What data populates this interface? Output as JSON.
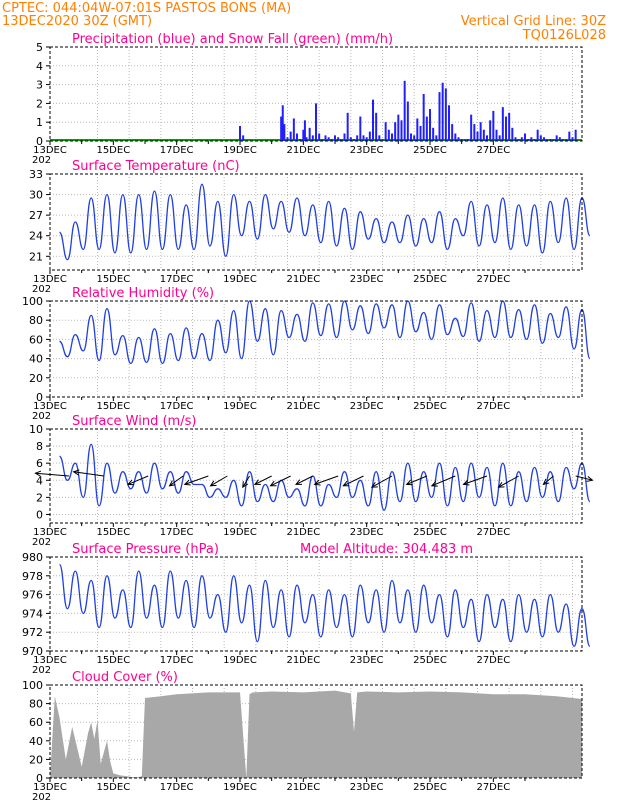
{
  "header": {
    "line1": "CPTEC:   044:04W-07:01S   PASTOS BONS (MA)",
    "line2": "13DEC2020 30Z (GMT)",
    "grid_note": "Vertical Grid Line: 30Z",
    "code": "TQ0126L028"
  },
  "year_stub": "202",
  "colors": {
    "header": "#ff8000",
    "title": "#ff0090",
    "line": "#2040e0",
    "precip": "#2020ff",
    "snow": "#00a000",
    "cloud": "#a8a8a8",
    "grid": "#bbbbbb"
  },
  "chart_data": [
    {
      "id": "precip",
      "type": "bar",
      "title": "Precipitation (blue) and Snow Fall (green) (mm/h)",
      "ylim": [
        0,
        5
      ],
      "yticks": [
        0,
        1,
        2,
        3,
        4,
        5
      ],
      "x_ticks": [
        "13DEC",
        "15DEC",
        "17DEC",
        "19DEC",
        "21DEC",
        "23DEC",
        "25DEC",
        "27DEC"
      ],
      "x": [
        6.0,
        6.1,
        7.3,
        7.35,
        7.4,
        7.5,
        7.6,
        7.7,
        7.8,
        7.9,
        8.0,
        8.05,
        8.1,
        8.2,
        8.3,
        8.4,
        8.5,
        8.6,
        8.7,
        8.8,
        8.9,
        9.0,
        9.1,
        9.2,
        9.3,
        9.4,
        9.5,
        9.6,
        9.7,
        9.8,
        9.9,
        10.0,
        10.1,
        10.2,
        10.3,
        10.4,
        10.5,
        10.6,
        10.7,
        10.8,
        10.9,
        11.0,
        11.1,
        11.2,
        11.3,
        11.4,
        11.5,
        11.6,
        11.7,
        11.8,
        11.9,
        12.0,
        12.1,
        12.2,
        12.3,
        12.4,
        12.5,
        12.6,
        12.7,
        12.8,
        12.9,
        13.0,
        13.1,
        13.2,
        13.3,
        13.4,
        13.5,
        13.6,
        13.7,
        13.8,
        13.9,
        14.0,
        14.1,
        14.2,
        14.3,
        14.4,
        14.5,
        14.6,
        14.7,
        14.8,
        14.9,
        15.0,
        15.1,
        15.2,
        15.3,
        15.4,
        15.5,
        15.6,
        15.7,
        15.8,
        15.9,
        16.0,
        16.1,
        16.2,
        16.3,
        16.4,
        16.5,
        16.6
      ],
      "values": [
        0.8,
        0.3,
        1.3,
        1.9,
        0.9,
        0.2,
        0.5,
        1.2,
        0.4,
        0.1,
        0.6,
        1.1,
        0.2,
        0.7,
        0.3,
        2.0,
        0.4,
        0.1,
        0.3,
        0.2,
        0.1,
        0.3,
        0.2,
        0.1,
        0.4,
        1.5,
        0.2,
        0.1,
        0.3,
        1.3,
        0.3,
        0.2,
        0.5,
        2.2,
        1.5,
        0.3,
        0.1,
        1.0,
        0.6,
        0.4,
        1.0,
        1.4,
        1.1,
        3.2,
        2.1,
        0.4,
        0.3,
        1.2,
        0.8,
        2.5,
        1.3,
        1.7,
        0.7,
        0.3,
        2.6,
        3.1,
        2.8,
        1.9,
        0.9,
        0.4,
        0.2,
        0.1,
        0.1,
        0.1,
        1.4,
        0.9,
        0.5,
        1.0,
        0.6,
        0.3,
        1.1,
        1.6,
        0.6,
        0.3,
        1.8,
        1.3,
        1.5,
        0.7,
        0.2,
        0.1,
        0.2,
        0.4,
        0.1,
        0.2,
        0.1,
        0.6,
        0.3,
        0.2,
        0.1,
        0.1,
        0.1,
        0.3,
        0.2,
        0.1,
        0.1,
        0.5,
        0.2,
        0.6
      ]
    },
    {
      "id": "temp",
      "type": "line",
      "title": "Surface Temperature (nC)",
      "ylim": [
        19,
        33
      ],
      "yticks": [
        21,
        24,
        27,
        30,
        33
      ],
      "x_ticks": [
        "13DEC",
        "15DEC",
        "17DEC",
        "19DEC",
        "21DEC",
        "23DEC",
        "25DEC",
        "27DEC"
      ],
      "day_range": [
        0,
        16.8
      ],
      "max": [
        24.5,
        26.0,
        29.5,
        30.0,
        30.0,
        30.0,
        30.5,
        30.0,
        28.5,
        31.5,
        29.0,
        30.0,
        29.0,
        30.0,
        29.0,
        29.5,
        28.5,
        29.0,
        28.0,
        27.5,
        26.5,
        26.0,
        27.0,
        26.5,
        27.5,
        26.5,
        29.0,
        28.5,
        29.5,
        28.5,
        28.5,
        29.0,
        29.5,
        29.5
      ],
      "min": [
        20.5,
        22.0,
        22.0,
        21.5,
        21.5,
        22.0,
        22.0,
        22.0,
        22.0,
        22.5,
        21.0,
        24.0,
        23.5,
        25.0,
        24.5,
        24.0,
        23.0,
        22.5,
        22.0,
        23.5,
        23.0,
        23.0,
        22.5,
        23.0,
        22.0,
        24.0,
        22.5,
        23.0,
        22.0,
        22.5,
        21.5,
        23.0,
        22.0,
        24.0
      ]
    },
    {
      "id": "rh",
      "type": "line",
      "title": "Relative Humidity (%)",
      "ylim": [
        0,
        100
      ],
      "yticks": [
        0,
        20,
        40,
        60,
        80,
        100
      ],
      "x_ticks": [
        "13DEC",
        "15DEC",
        "17DEC",
        "19DEC",
        "21DEC",
        "23DEC",
        "25DEC",
        "27DEC"
      ],
      "day_range": [
        0,
        16.8
      ],
      "max": [
        58,
        65,
        85,
        92,
        64,
        62,
        71,
        66,
        72,
        66,
        80,
        90,
        100,
        92,
        90,
        86,
        98,
        97,
        100,
        95,
        97,
        96,
        100,
        88,
        96,
        82,
        98,
        90,
        100,
        91,
        96,
        87,
        94,
        91
      ],
      "min": [
        42,
        48,
        38,
        44,
        35,
        36,
        35,
        38,
        40,
        38,
        46,
        40,
        58,
        44,
        62,
        58,
        64,
        62,
        70,
        66,
        72,
        62,
        68,
        60,
        65,
        63,
        58,
        62,
        62,
        60,
        56,
        62,
        50,
        40
      ]
    },
    {
      "id": "wind",
      "type": "line",
      "title": "Surface Wind (m/s)",
      "ylim": [
        -1,
        10
      ],
      "yticks": [
        0,
        2,
        4,
        6,
        8,
        10
      ],
      "x_ticks": [
        "13DEC",
        "15DEC",
        "17DEC",
        "19DEC",
        "21DEC",
        "23DEC",
        "25DEC",
        "27DEC"
      ],
      "day_range": [
        0,
        16.8
      ],
      "max": [
        6.8,
        6.0,
        8.2,
        6.0,
        5.0,
        5.0,
        6.0,
        5.0,
        5.0,
        3.5,
        3.0,
        4.0,
        5.0,
        3.5,
        4.0,
        3.0,
        4.5,
        3.5,
        5.0,
        4.0,
        5.0,
        5.0,
        6.0,
        5.0,
        6.0,
        5.5,
        6.0,
        5.5,
        6.0,
        5.0,
        5.5,
        5.0,
        5.5,
        6.0
      ],
      "min": [
        4.0,
        2.0,
        1.0,
        2.5,
        3.0,
        2.5,
        3.0,
        2.5,
        3.5,
        2.0,
        2.0,
        1.0,
        1.5,
        1.5,
        2.0,
        1.0,
        1.0,
        2.0,
        2.0,
        1.0,
        0.5,
        1.5,
        1.5,
        2.0,
        1.0,
        1.5,
        2.0,
        1.0,
        1.0,
        1.5,
        2.0,
        1.5,
        3.0,
        1.5
      ],
      "arrows": [
        {
          "day": 0.6,
          "u": 1.0,
          "v": -0.2
        },
        {
          "day": 1.7,
          "u": 0.9,
          "v": -0.3
        },
        {
          "day": 3.1,
          "u": 0.6,
          "v": 0.6
        },
        {
          "day": 4.2,
          "u": 0.4,
          "v": 0.7
        },
        {
          "day": 5.0,
          "u": 0.7,
          "v": 0.6
        },
        {
          "day": 5.6,
          "u": 0.5,
          "v": 0.7
        },
        {
          "day": 6.3,
          "u": 0.2,
          "v": 0.8
        },
        {
          "day": 7.0,
          "u": 0.5,
          "v": 0.6
        },
        {
          "day": 7.6,
          "u": 0.6,
          "v": 0.7
        },
        {
          "day": 8.3,
          "u": 0.5,
          "v": 0.6
        },
        {
          "day": 9.1,
          "u": 0.7,
          "v": 0.6
        },
        {
          "day": 9.9,
          "u": 0.6,
          "v": 0.7
        },
        {
          "day": 10.8,
          "u": 0.6,
          "v": 0.8
        },
        {
          "day": 11.9,
          "u": 0.6,
          "v": 0.6
        },
        {
          "day": 12.8,
          "u": 0.7,
          "v": 0.7
        },
        {
          "day": 13.8,
          "u": 0.7,
          "v": 0.6
        },
        {
          "day": 14.8,
          "u": 0.6,
          "v": 0.8
        },
        {
          "day": 15.9,
          "u": 0.3,
          "v": 0.6
        },
        {
          "day": 16.6,
          "u": -0.5,
          "v": 0.3
        }
      ]
    },
    {
      "id": "pressure",
      "type": "line",
      "title": "Surface Pressure (hPa)",
      "annotation": "Model Altitude: 304.483  m",
      "ylim": [
        970,
        980
      ],
      "yticks": [
        970,
        972,
        974,
        976,
        978,
        980
      ],
      "x_ticks": [
        "13DEC",
        "15DEC",
        "17DEC",
        "19DEC",
        "21DEC",
        "23DEC",
        "25DEC",
        "27DEC"
      ],
      "day_range": [
        0,
        16.8
      ],
      "max": [
        979.2,
        978.5,
        977.5,
        978.0,
        976.5,
        978.5,
        977.0,
        978.5,
        977.5,
        978.0,
        976.0,
        978.0,
        977.0,
        977.5,
        976.5,
        977.0,
        976.0,
        976.5,
        976.0,
        977.0,
        976.5,
        977.5,
        976.5,
        977.0,
        976.0,
        976.5,
        975.5,
        976.0,
        975.5,
        976.0,
        975.5,
        976.0,
        975.0,
        974.5
      ],
      "min": [
        974.5,
        974.0,
        972.5,
        973.5,
        972.5,
        973.5,
        972.5,
        973.5,
        972.5,
        973.5,
        972.0,
        973.0,
        971.0,
        972.5,
        971.5,
        973.0,
        971.5,
        972.5,
        971.5,
        973.0,
        972.0,
        973.0,
        972.0,
        973.0,
        971.5,
        972.5,
        971.0,
        972.5,
        971.0,
        972.0,
        971.5,
        972.0,
        970.5,
        970.5
      ]
    },
    {
      "id": "cloud",
      "type": "area",
      "title": "Cloud Cover (%)",
      "ylim": [
        0,
        100
      ],
      "yticks": [
        0,
        20,
        40,
        60,
        80,
        100
      ],
      "x_ticks": [
        "13DEC",
        "15DEC",
        "17DEC",
        "19DEC",
        "21DEC",
        "23DEC",
        "25DEC",
        "27DEC"
      ],
      "days": [
        0,
        0.15,
        0.3,
        0.5,
        0.7,
        1.0,
        1.2,
        1.3,
        1.4,
        1.5,
        1.6,
        1.8,
        1.9,
        2.0,
        2.2,
        2.4,
        2.6,
        2.8,
        2.9,
        3.0,
        3.5,
        4.0,
        5.0,
        6.0,
        6.2,
        6.3,
        6.4,
        7.0,
        8.0,
        9.0,
        9.5,
        9.6,
        9.7,
        10.0,
        11.0,
        12.0,
        13.0,
        14.0,
        15.0,
        16.0,
        16.8
      ],
      "values": [
        0,
        88,
        65,
        20,
        55,
        12,
        48,
        60,
        42,
        62,
        15,
        40,
        18,
        5,
        3,
        2,
        1,
        1,
        2,
        86,
        88,
        90,
        92,
        92,
        0,
        90,
        92,
        93,
        92,
        94,
        91,
        50,
        92,
        93,
        92,
        93,
        92,
        90,
        90,
        88,
        85
      ]
    }
  ]
}
